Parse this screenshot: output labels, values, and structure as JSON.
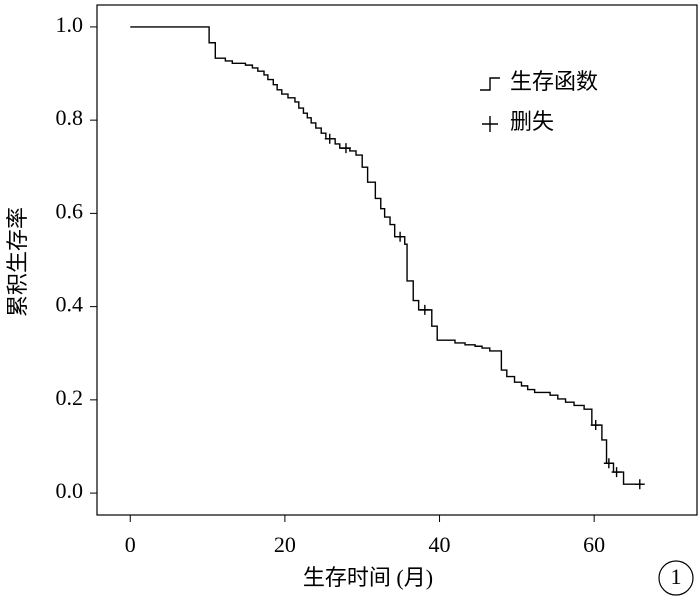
{
  "chart_data": {
    "type": "km",
    "x_label": "生存时间 (月)",
    "y_label": "累积生存率",
    "annotation": "1",
    "xlim": [
      -4.3,
      73.3
    ],
    "ylim": [
      -0.047,
      1.047
    ],
    "xticks": [
      0,
      20,
      40,
      60
    ],
    "yticks": [
      {
        "value": 0,
        "label": "0.0"
      },
      0.2,
      0.4,
      0.6,
      0.8,
      {
        "value": 1,
        "label": "1.0"
      }
    ],
    "legend": "upper right",
    "color": "#000000",
    "series": [
      {
        "name": "生存函数",
        "x": [
          0,
          10.2,
          11.0,
          12.3,
          13.2,
          14.9,
          15.8,
          16.5,
          17.3,
          17.8,
          18.5,
          19.0,
          19.6,
          20.4,
          21.3,
          21.8,
          22.4,
          22.9,
          23.4,
          24.0,
          24.7,
          25.3,
          26.5,
          27.1,
          28.4,
          29.2,
          30.0,
          30.7,
          31.7,
          32.4,
          32.9,
          33.6,
          34.2,
          35.5,
          35.8,
          36.6,
          37.3,
          39.0,
          39.7,
          42.0,
          43.3,
          44.6,
          45.5,
          46.5,
          48.0,
          48.7,
          49.7,
          50.6,
          51.4,
          52.3,
          54.3,
          55.3,
          56.3,
          57.4,
          58.7,
          59.7,
          61.0,
          61.6,
          62.5,
          63.8,
          66.3
        ],
        "values": [
          1.0,
          0.966,
          0.933,
          0.927,
          0.922,
          0.918,
          0.912,
          0.905,
          0.897,
          0.887,
          0.876,
          0.865,
          0.856,
          0.848,
          0.839,
          0.826,
          0.815,
          0.805,
          0.794,
          0.783,
          0.772,
          0.76,
          0.749,
          0.74,
          0.734,
          0.725,
          0.699,
          0.667,
          0.632,
          0.61,
          0.592,
          0.576,
          0.55,
          0.534,
          0.455,
          0.413,
          0.393,
          0.358,
          0.328,
          0.322,
          0.318,
          0.315,
          0.311,
          0.305,
          0.264,
          0.25,
          0.238,
          0.23,
          0.222,
          0.216,
          0.21,
          0.202,
          0.195,
          0.188,
          0.18,
          0.146,
          0.114,
          0.064,
          0.045,
          0.019,
          0.019
        ]
      },
      {
        "name": "删失",
        "x": [
          25.8,
          27.9,
          34.9,
          38.1,
          60.2,
          61.9,
          62.9,
          65.9
        ],
        "values": [
          0.76,
          0.74,
          0.55,
          0.393,
          0.146,
          0.064,
          0.045,
          0.019
        ]
      }
    ]
  }
}
